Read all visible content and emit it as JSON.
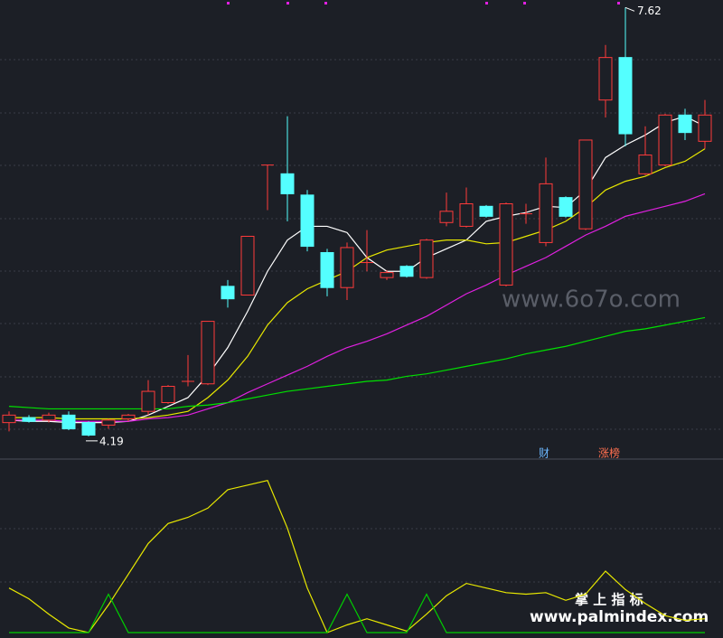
{
  "chart_data": [
    {
      "type": "candlestick",
      "ylim": [
        4.03,
        7.68
      ],
      "up_color": "#ff3b3b",
      "down_color": "#54ffff",
      "candles": {
        "open": [
          4.3,
          4.34,
          4.32,
          4.36,
          4.3,
          4.28,
          4.33,
          4.39,
          4.46,
          4.63,
          4.61,
          5.39,
          5.32,
          6.36,
          6.29,
          6.12,
          5.66,
          5.38,
          5.58,
          5.46,
          5.55,
          5.46,
          5.9,
          5.87,
          6.03,
          5.4,
          5.97,
          5.74,
          6.1,
          5.85,
          6.88,
          7.22,
          6.29,
          6.36,
          6.76,
          6.55
        ],
        "high": [
          4.39,
          4.36,
          4.38,
          4.39,
          4.31,
          4.33,
          4.37,
          4.64,
          4.6,
          4.84,
          5.11,
          5.44,
          5.79,
          6.36,
          6.75,
          6.16,
          5.69,
          5.74,
          5.84,
          5.52,
          5.56,
          5.77,
          6.14,
          6.18,
          6.04,
          6.06,
          6.05,
          6.42,
          6.11,
          6.56,
          7.32,
          7.62,
          6.67,
          6.77,
          6.81,
          6.88
        ],
        "low": [
          4.23,
          4.3,
          4.3,
          4.24,
          4.19,
          4.25,
          4.31,
          4.36,
          4.45,
          4.59,
          4.6,
          5.22,
          5.32,
          6.0,
          5.91,
          5.67,
          5.31,
          5.28,
          5.51,
          5.44,
          5.46,
          5.45,
          5.87,
          5.86,
          5.94,
          5.39,
          5.89,
          5.71,
          5.94,
          5.84,
          6.74,
          6.51,
          6.28,
          6.35,
          6.56,
          6.49
        ],
        "close": [
          4.36,
          4.31,
          4.36,
          4.25,
          4.2,
          4.32,
          4.36,
          4.55,
          4.59,
          4.63,
          5.11,
          5.29,
          5.79,
          6.36,
          6.13,
          5.71,
          5.38,
          5.7,
          5.58,
          5.5,
          5.47,
          5.76,
          5.99,
          6.05,
          5.95,
          6.05,
          5.97,
          6.21,
          5.95,
          6.56,
          7.22,
          6.61,
          6.44,
          6.76,
          6.62,
          6.76
        ]
      },
      "high_label_index": 31,
      "low_label_index": 4,
      "series": [
        {
          "color": "#ffffff",
          "values": [
            4.32,
            4.31,
            4.31,
            4.3,
            4.3,
            4.3,
            4.31,
            4.36,
            4.43,
            4.5,
            4.68,
            4.9,
            5.19,
            5.51,
            5.76,
            5.87,
            5.87,
            5.82,
            5.62,
            5.51,
            5.51,
            5.62,
            5.69,
            5.76,
            5.91,
            5.95,
            5.98,
            6.03,
            6.02,
            6.16,
            6.42,
            6.52,
            6.6,
            6.7,
            6.75,
            6.67
          ]
        },
        {
          "color": "#e8e800",
          "values": [
            4.34,
            4.34,
            4.34,
            4.33,
            4.33,
            4.33,
            4.33,
            4.34,
            4.36,
            4.39,
            4.5,
            4.64,
            4.83,
            5.08,
            5.26,
            5.37,
            5.44,
            5.51,
            5.62,
            5.68,
            5.71,
            5.74,
            5.76,
            5.76,
            5.73,
            5.74,
            5.79,
            5.84,
            5.91,
            6.02,
            6.16,
            6.23,
            6.27,
            6.34,
            6.39,
            6.49
          ]
        },
        {
          "color": "#e020e0",
          "values": [
            4.32,
            4.32,
            4.32,
            4.31,
            4.31,
            4.31,
            4.31,
            4.33,
            4.34,
            4.36,
            4.41,
            4.46,
            4.54,
            4.61,
            4.68,
            4.75,
            4.83,
            4.9,
            4.95,
            5.01,
            5.08,
            5.15,
            5.24,
            5.33,
            5.4,
            5.48,
            5.55,
            5.62,
            5.71,
            5.8,
            5.87,
            5.95,
            5.99,
            6.03,
            6.07,
            6.13
          ]
        },
        {
          "color": "#00e000",
          "values": [
            4.43,
            4.42,
            4.41,
            4.41,
            4.41,
            4.41,
            4.41,
            4.41,
            4.41,
            4.43,
            4.44,
            4.46,
            4.49,
            4.52,
            4.55,
            4.57,
            4.59,
            4.61,
            4.63,
            4.64,
            4.67,
            4.69,
            4.72,
            4.75,
            4.78,
            4.81,
            4.85,
            4.88,
            4.91,
            4.95,
            4.99,
            5.03,
            5.05,
            5.08,
            5.11,
            5.14
          ]
        }
      ]
    },
    {
      "type": "line",
      "ylim": [
        0,
        100
      ],
      "series": [
        {
          "color": "#e8e800",
          "values": [
            29,
            22,
            12,
            3,
            0,
            18,
            38,
            58,
            71,
            75,
            81,
            93,
            96,
            99,
            68,
            29,
            0,
            5,
            9,
            5,
            1,
            12,
            24,
            32,
            29,
            26,
            25,
            26,
            21,
            25,
            40,
            28,
            19,
            11,
            8,
            9
          ]
        },
        {
          "color": "#00d000",
          "values": [
            0,
            0,
            0,
            0,
            0,
            25,
            0,
            0,
            0,
            0,
            0,
            0,
            0,
            0,
            0,
            0,
            0,
            25,
            0,
            0,
            0,
            25,
            0,
            0,
            0,
            0,
            0,
            0,
            0,
            0,
            0,
            0,
            0,
            0,
            0,
            0
          ]
        }
      ]
    }
  ],
  "tags": [
    "财",
    "涨榜"
  ],
  "watermarks": [
    "www.6o7o.com",
    "掌 上 指 标",
    "www.palmindex.com"
  ]
}
